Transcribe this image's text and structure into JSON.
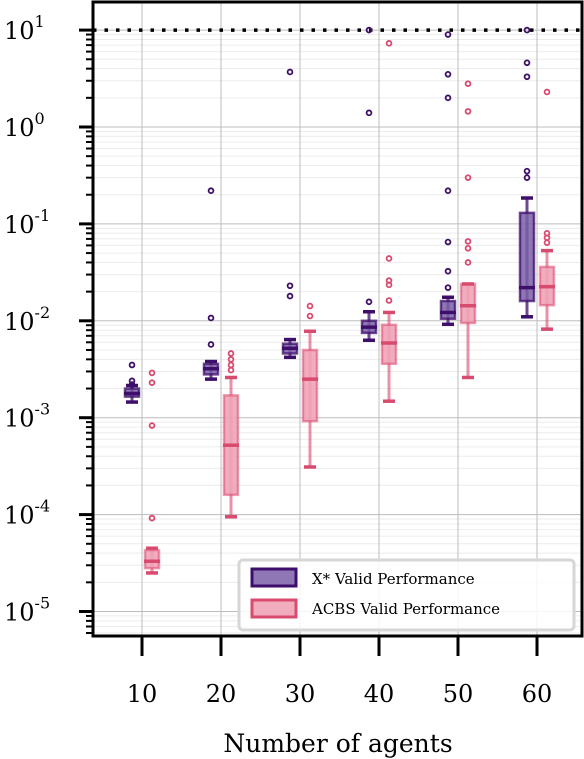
{
  "chart_data": {
    "type": "box",
    "xlabel": "Number of agents",
    "ylabel": "",
    "yscale": "log",
    "ylim": [
      5e-06,
      20
    ],
    "grid": true,
    "legend_position": "lower-right",
    "reference_line": {
      "y": 10,
      "style": "dotted",
      "color": "#000000"
    },
    "categories": [
      "10",
      "20",
      "30",
      "40",
      "50",
      "60"
    ],
    "yticks": [
      {
        "base": "10",
        "exp": "-5"
      },
      {
        "base": "10",
        "exp": "-4"
      },
      {
        "base": "10",
        "exp": "-3"
      },
      {
        "base": "10",
        "exp": "-2"
      },
      {
        "base": "10",
        "exp": "-1"
      },
      {
        "base": "10",
        "exp": "0"
      },
      {
        "base": "10",
        "exp": "1"
      }
    ],
    "series": [
      {
        "name": "X* Valid Performance",
        "color": "#3d0f6b",
        "fill": "#7b5ea8",
        "boxes": [
          {
            "category": "10",
            "whislo": 0.00145,
            "q1": 0.00165,
            "median": 0.00178,
            "q3": 0.002,
            "whishi": 0.00215,
            "fliers": [
              0.0022,
              0.0024,
              0.0035
            ]
          },
          {
            "category": "20",
            "whislo": 0.0025,
            "q1": 0.0028,
            "median": 0.0032,
            "q3": 0.0036,
            "whishi": 0.0038,
            "fliers": [
              0.0057,
              0.0107,
              0.22
            ]
          },
          {
            "category": "30",
            "whislo": 0.0042,
            "q1": 0.0046,
            "median": 0.0052,
            "q3": 0.0058,
            "whishi": 0.0064,
            "fliers": [
              0.018,
              0.023,
              3.7
            ]
          },
          {
            "category": "40",
            "whislo": 0.0063,
            "q1": 0.0075,
            "median": 0.0086,
            "q3": 0.01,
            "whishi": 0.0124,
            "fliers": [
              0.0157,
              1.4,
              10.0
            ]
          },
          {
            "category": "50",
            "whislo": 0.0092,
            "q1": 0.0105,
            "median": 0.0122,
            "q3": 0.016,
            "whishi": 0.0175,
            "fliers": [
              0.022,
              0.0325,
              0.065,
              0.22,
              2.0,
              3.5,
              9.0
            ]
          },
          {
            "category": "60",
            "whislo": 0.011,
            "q1": 0.016,
            "median": 0.022,
            "q3": 0.13,
            "whishi": 0.185,
            "fliers": [
              0.3,
              0.35,
              3.3,
              4.6,
              10.0
            ]
          }
        ]
      },
      {
        "name": "ACBS Valid Performance",
        "color": "#d94a6f",
        "fill": "#f0a3b7",
        "boxes": [
          {
            "category": "10",
            "whislo": 2.5e-05,
            "q1": 2.8e-05,
            "median": 3.3e-05,
            "q3": 4.3e-05,
            "whishi": 4.5e-05,
            "fliers": [
              9.2e-05,
              0.00083,
              0.0023,
              0.0029
            ]
          },
          {
            "category": "20",
            "whislo": 9.5e-05,
            "q1": 0.00016,
            "median": 0.00052,
            "q3": 0.0017,
            "whishi": 0.0026,
            "fliers": [
              0.0031,
              0.0035,
              0.004,
              0.0046
            ]
          },
          {
            "category": "30",
            "whislo": 0.00031,
            "q1": 0.00092,
            "median": 0.0025,
            "q3": 0.005,
            "whishi": 0.0078,
            "fliers": [
              0.0112,
              0.0142
            ]
          },
          {
            "category": "40",
            "whislo": 0.00148,
            "q1": 0.0036,
            "median": 0.0059,
            "q3": 0.0091,
            "whishi": 0.0122,
            "fliers": [
              0.0162,
              0.0235,
              0.026,
              0.044,
              7.3
            ]
          },
          {
            "category": "50",
            "whislo": 0.0026,
            "q1": 0.0095,
            "median": 0.0143,
            "q3": 0.024,
            "whishi": 0.024,
            "fliers": [
              0.04,
              0.056,
              0.066,
              0.3,
              1.45,
              2.8
            ]
          },
          {
            "category": "60",
            "whislo": 0.0082,
            "q1": 0.0145,
            "median": 0.0225,
            "q3": 0.036,
            "whishi": 0.053,
            "fliers": [
              0.064,
              0.072,
              0.08,
              2.3
            ]
          }
        ]
      }
    ]
  }
}
